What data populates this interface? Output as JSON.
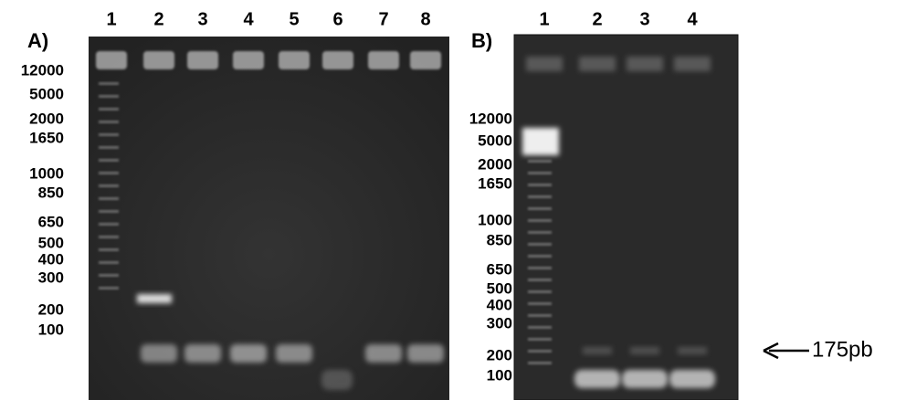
{
  "panel_a": {
    "label": "A)",
    "lanes": [
      "1",
      "2",
      "3",
      "4",
      "5",
      "6",
      "7",
      "8"
    ],
    "ladder": [
      "12000",
      "5000",
      "2000",
      "1650",
      "1000",
      "850",
      "650",
      "500",
      "400",
      "300",
      "200",
      "100"
    ]
  },
  "panel_b": {
    "label": "B)",
    "lanes": [
      "1",
      "2",
      "3",
      "4"
    ],
    "ladder": [
      "12000",
      "5000",
      "2000",
      "1650",
      "1000",
      "850",
      "650",
      "500",
      "400",
      "300",
      "200",
      "100"
    ],
    "arrow_label": "175pb"
  }
}
